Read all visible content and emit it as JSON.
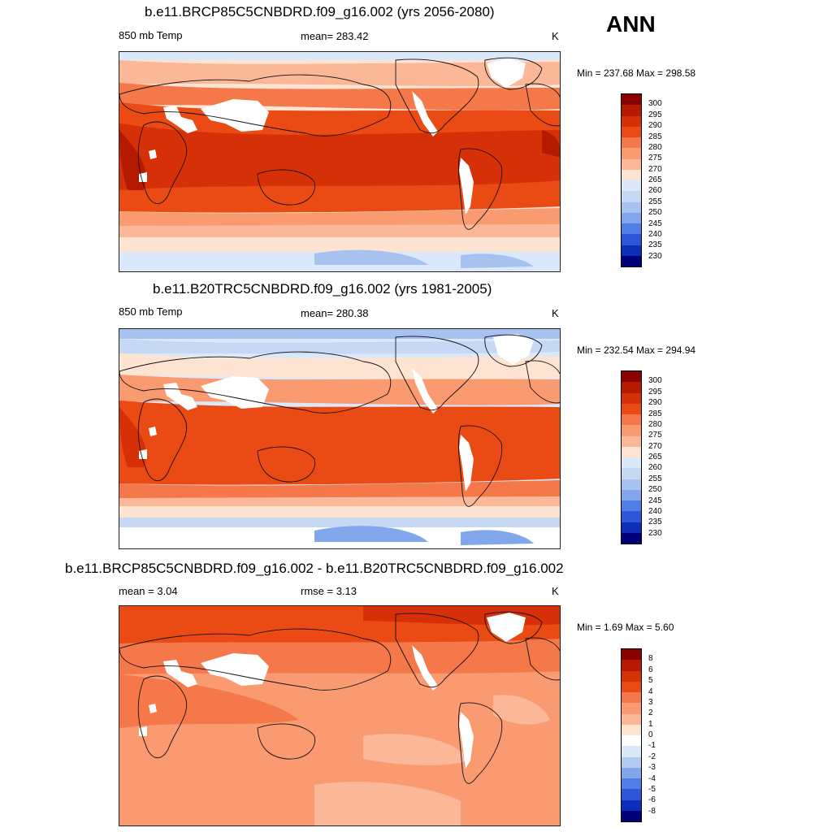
{
  "season": "ANN",
  "panels": [
    {
      "title": "b.e11.BRCP85C5CNBDRD.f09_g16.002 (yrs 2056-2080)",
      "left_label": "850 mb Temp",
      "center_label": "mean= 283.42",
      "units": "K",
      "minmax": "Min = 237.68 Max = 298.58",
      "levels": [
        "300",
        "295",
        "290",
        "285",
        "280",
        "275",
        "270",
        "265",
        "260",
        "255",
        "250",
        "245",
        "240",
        "235",
        "230"
      ],
      "colors": {
        "ocean_warm": "#e03a10",
        "tropics": "#d63008",
        "mid": "#f4784a",
        "subpolar": "#fbb898",
        "polar": "#fde3d2",
        "cold": "#c6d8f4",
        "land_mask": "#ffffff"
      }
    },
    {
      "title": "b.e11.B20TRC5CNBDRD.f09_g16.002 (yrs 1981-2005)",
      "left_label": "850 mb Temp",
      "center_label": "mean= 280.38",
      "units": "K",
      "minmax": "Min = 232.54 Max = 294.94",
      "levels": [
        "300",
        "295",
        "290",
        "285",
        "280",
        "275",
        "270",
        "265",
        "260",
        "255",
        "250",
        "245",
        "240",
        "235",
        "230"
      ]
    },
    {
      "title": "b.e11.BRCP85C5CNBDRD.f09_g16.002 - b.e11.B20TRC5CNBDRD.f09_g16.002",
      "left_label": "mean =   3.04",
      "center_label": "rmse =   3.13",
      "units": "K",
      "minmax": "Min =   1.69 Max =   5.60",
      "levels": [
        "8",
        "6",
        "5",
        "4",
        "3",
        "2",
        "1",
        "0",
        "-1",
        "-2",
        "-3",
        "-4",
        "-5",
        "-6",
        "-8"
      ]
    }
  ],
  "colorbar_abs": [
    "#8b0000",
    "#b51a00",
    "#d63008",
    "#ea4a14",
    "#f4784a",
    "#f99a70",
    "#fbb898",
    "#fde3d2",
    "#dbe8fa",
    "#c6d8f4",
    "#a8c2f0",
    "#82a6ec",
    "#4f7ee6",
    "#2a58d8",
    "#0c2eb8",
    "#00007a"
  ],
  "colorbar_diff": [
    "#8b0000",
    "#b51a00",
    "#d63008",
    "#ea4a14",
    "#f4784a",
    "#f99a70",
    "#fbb898",
    "#fde3d2",
    "#ffffff",
    "#dbe8fa",
    "#b2c9f2",
    "#82a6ec",
    "#4f7ee6",
    "#2a58d8",
    "#0c2eb8",
    "#00007a"
  ]
}
